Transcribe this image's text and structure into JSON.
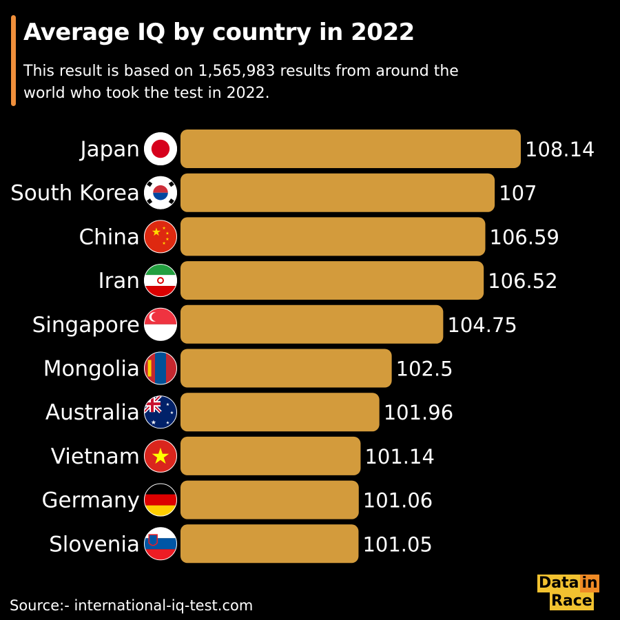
{
  "header": {
    "title": "Average IQ by country in 2022",
    "subtitle": "This result is based on 1,565,983 results from around the world who took the test in 2022."
  },
  "footer": {
    "source": "Source:- international-iq-test.com",
    "logo_text": "Data in Race"
  },
  "colors": {
    "background": "#000000",
    "bar": "#d39b3c",
    "accent": "#ef8f3b",
    "text": "#ffffff"
  },
  "chart_data": {
    "type": "bar",
    "orientation": "horizontal",
    "title": "Average IQ by country in 2022",
    "xlabel": "",
    "ylabel": "",
    "categories": [
      "Japan",
      "South Korea",
      "China",
      "Iran",
      "Singapore",
      "Mongolia",
      "Australia",
      "Vietnam",
      "Germany",
      "Slovenia"
    ],
    "values": [
      108.14,
      107,
      106.59,
      106.52,
      104.75,
      102.5,
      101.96,
      101.14,
      101.06,
      101.05
    ],
    "value_labels": [
      "108.14",
      "107",
      "106.59",
      "106.52",
      "104.75",
      "102.5",
      "101.96",
      "101.14",
      "101.06",
      "101.05"
    ],
    "flag_icons": [
      "japan-flag-icon",
      "south-korea-flag-icon",
      "china-flag-icon",
      "iran-flag-icon",
      "singapore-flag-icon",
      "mongolia-flag-icon",
      "australia-flag-icon",
      "vietnam-flag-icon",
      "germany-flag-icon",
      "slovenia-flag-icon"
    ],
    "xlim": [
      93.27,
      108.14
    ],
    "grid": false,
    "legend": "none"
  }
}
